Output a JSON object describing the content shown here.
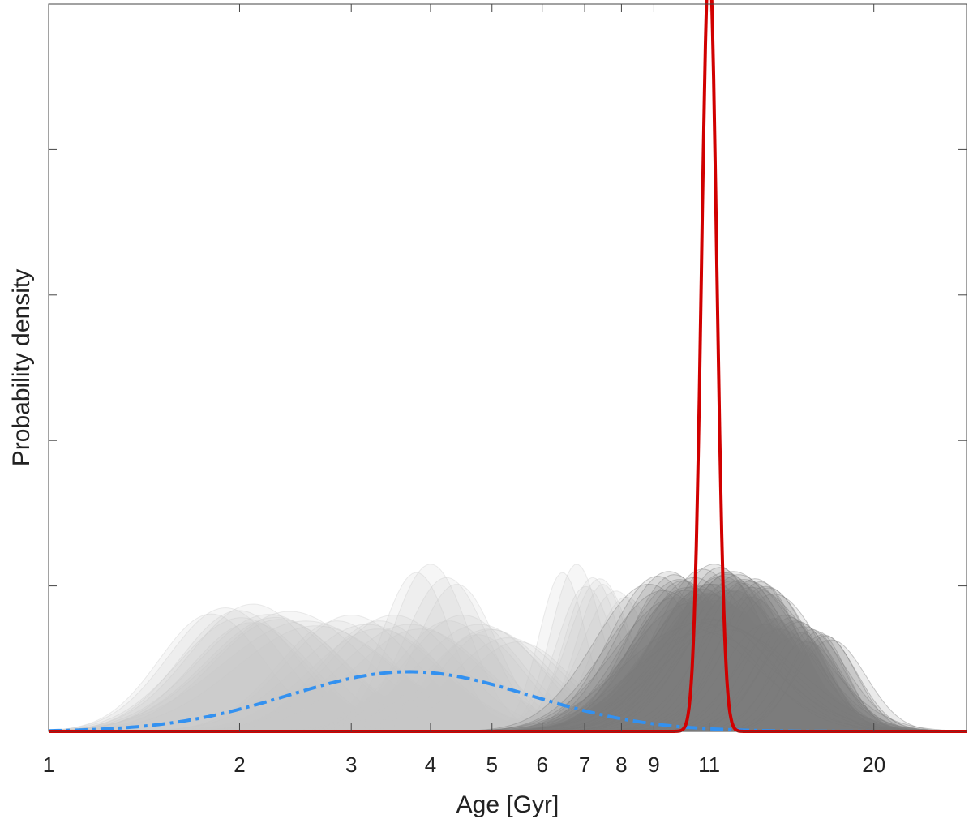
{
  "chart_data": {
    "type": "area",
    "title": "",
    "xlabel": "Age [Gyr]",
    "ylabel": "Probability density",
    "xscale": "log",
    "xlim": [
      1,
      28
    ],
    "ylim": [
      0,
      1.0
    ],
    "x_ticks": [
      1,
      2,
      3,
      4,
      5,
      6,
      7,
      8,
      9,
      11,
      20
    ],
    "x_tick_labels": [
      "1",
      "2",
      "3",
      "4",
      "5",
      "6",
      "7",
      "8",
      "9",
      "11",
      "20"
    ],
    "y_ticks": [
      0.2,
      0.4,
      0.6,
      0.8,
      1.0
    ],
    "y_tick_labels_shown": false,
    "grid": false,
    "legend": "none",
    "series": [
      {
        "style": "light gray translucent curves",
        "color": "#c8c8c8",
        "components": [
          {
            "center": 1.9,
            "log_sigma": 0.09,
            "peak": 0.17
          },
          {
            "center": 2.1,
            "log_sigma": 0.1,
            "peak": 0.175
          },
          {
            "center": 2.4,
            "log_sigma": 0.12,
            "peak": 0.165
          },
          {
            "center": 3.0,
            "log_sigma": 0.1,
            "peak": 0.16
          },
          {
            "center": 3.5,
            "log_sigma": 0.1,
            "peak": 0.16
          },
          {
            "center": 4.0,
            "log_sigma": 0.06,
            "peak": 0.23
          },
          {
            "center": 4.5,
            "log_sigma": 0.09,
            "peak": 0.16
          },
          {
            "center": 5.0,
            "log_sigma": 0.08,
            "peak": 0.14
          },
          {
            "center": 6.8,
            "log_sigma": 0.04,
            "peak": 0.23
          },
          {
            "center": 7.4,
            "log_sigma": 0.05,
            "peak": 0.21
          }
        ]
      },
      {
        "style": "dark gray translucent curves",
        "color": "#7a7a7a",
        "components": [
          {
            "center": 9.5,
            "log_sigma": 0.08,
            "peak": 0.22
          },
          {
            "center": 10.5,
            "log_sigma": 0.09,
            "peak": 0.2
          },
          {
            "center": 11.2,
            "log_sigma": 0.08,
            "peak": 0.23
          },
          {
            "center": 12.0,
            "log_sigma": 0.09,
            "peak": 0.22
          },
          {
            "center": 13.0,
            "log_sigma": 0.07,
            "peak": 0.21
          },
          {
            "center": 14.5,
            "log_sigma": 0.06,
            "peak": 0.16
          },
          {
            "center": 16.0,
            "log_sigma": 0.05,
            "peak": 0.14
          },
          {
            "center": 11.0,
            "log_sigma": 0.1,
            "peak": 0.155
          }
        ]
      },
      {
        "style": "blue dash-dot curve",
        "color": "#3391f0",
        "center": 3.7,
        "log_sigma": 0.19,
        "peak": 0.082
      },
      {
        "style": "red solid curve",
        "color": "#d10000",
        "center": 11.0,
        "log_sigma": 0.012,
        "peak": 1.065
      }
    ]
  }
}
